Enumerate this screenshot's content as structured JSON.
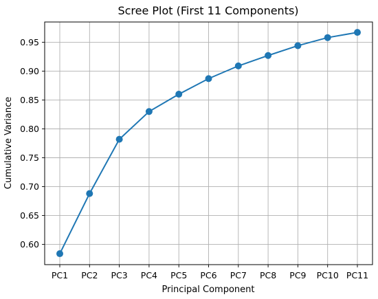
{
  "chart_data": {
    "type": "line",
    "title": "Scree Plot (First 11 Components)",
    "xlabel": "Principal Component",
    "ylabel": "Cumulative Variance",
    "categories": [
      "PC1",
      "PC2",
      "PC3",
      "PC4",
      "PC5",
      "PC6",
      "PC7",
      "PC8",
      "PC9",
      "PC10",
      "PC11"
    ],
    "series": [
      {
        "values": [
          0.584,
          0.688,
          0.782,
          0.83,
          0.86,
          0.887,
          0.909,
          0.927,
          0.944,
          0.958,
          0.967
        ],
        "color": "#1f77b4",
        "marker": "circle"
      }
    ],
    "yticks": [
      "0.60",
      "0.65",
      "0.70",
      "0.75",
      "0.80",
      "0.85",
      "0.90",
      "0.95"
    ],
    "ylim": [
      0.565,
      0.985
    ],
    "grid": true,
    "legend": "none"
  }
}
